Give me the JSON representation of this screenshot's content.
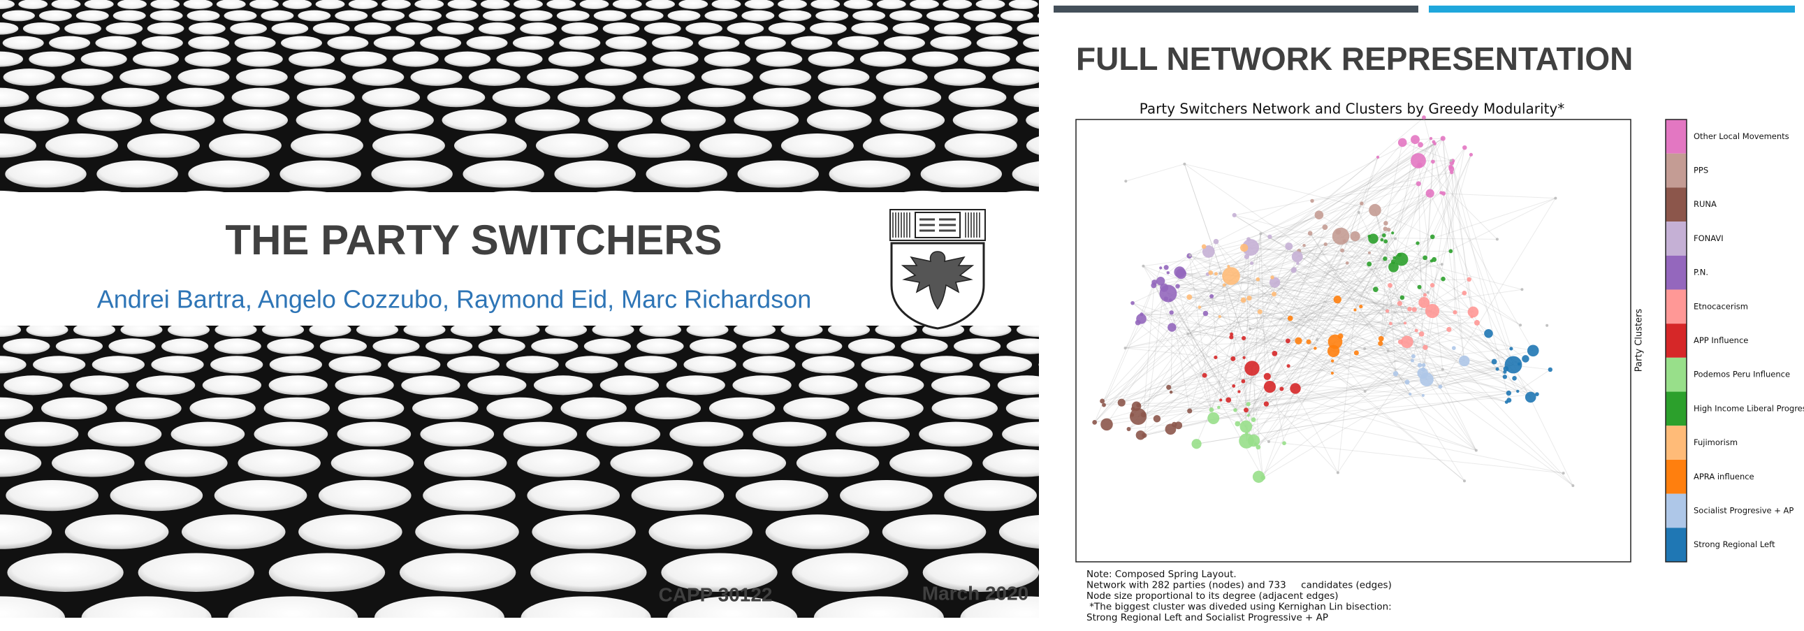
{
  "left_slide": {
    "title": "THE PARTY SWITCHERS",
    "authors": "Andrei Bartra, Angelo Cozzubo, Raymond Eid, Marc Richardson",
    "course": "CAPP 30122",
    "date": "March 2020"
  },
  "right_slide": {
    "title": "FULL NETWORK REPRESENTATION",
    "chart_title": "Party Switchers Network and Clusters by Greedy Modularity*",
    "colorbar_label": "Party Clusters",
    "clusters": [
      {
        "name": "Other Local Movements",
        "color": "#e377c2"
      },
      {
        "name": "PPS",
        "color": "#c49c94"
      },
      {
        "name": "RUNA",
        "color": "#8c564b"
      },
      {
        "name": "FONAVI",
        "color": "#c5b0d5"
      },
      {
        "name": "P.N.",
        "color": "#9467bd"
      },
      {
        "name": "Etnocacerism",
        "color": "#ff9896"
      },
      {
        "name": "APP Influence",
        "color": "#d62728"
      },
      {
        "name": "Podemos Peru  Influence",
        "color": "#98df8a"
      },
      {
        "name": "High Income Liberal Progresive",
        "color": "#2ca02c"
      },
      {
        "name": "Fujimorism",
        "color": "#ffbb78"
      },
      {
        "name": "APRA influence",
        "color": "#ff7f0e"
      },
      {
        "name": "Socialist Progresive + AP",
        "color": "#aec7e8"
      },
      {
        "name": "Strong Regional Left",
        "color": "#1f77b4"
      }
    ],
    "notes": [
      "Note: Composed Spring Layout.",
      "Network with 282 parties (nodes) and 733     candidates (edges)",
      "Node size proportional to its degree (adjacent edges)",
      " *The biggest cluster was diveded using Kernighan Lin bisection:",
      "Strong Regional Left and Socialist Progressive + AP"
    ]
  }
}
